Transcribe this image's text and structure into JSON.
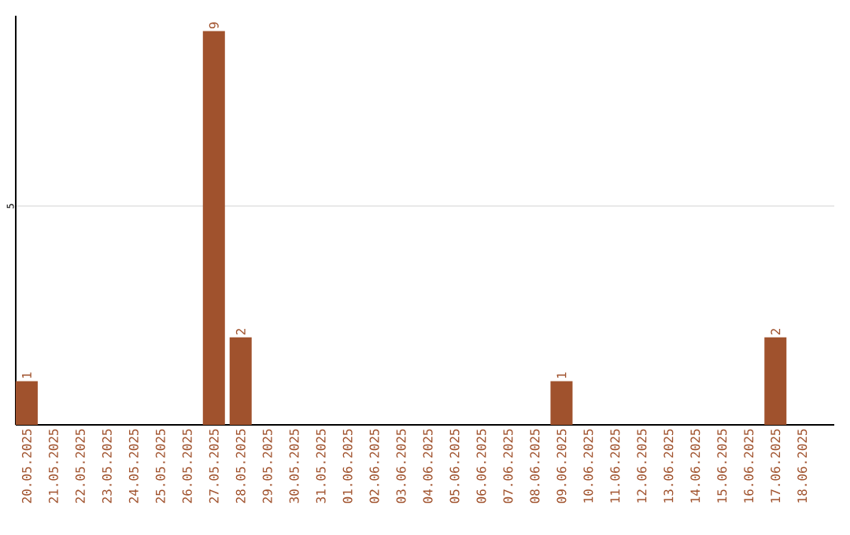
{
  "chart_data": {
    "type": "bar",
    "categories": [
      "20.05.2025",
      "21.05.2025",
      "22.05.2025",
      "23.05.2025",
      "24.05.2025",
      "25.05.2025",
      "26.05.2025",
      "27.05.2025",
      "28.05.2025",
      "29.05.2025",
      "30.05.2025",
      "31.05.2025",
      "01.06.2025",
      "02.06.2025",
      "03.06.2025",
      "04.06.2025",
      "05.06.2025",
      "06.06.2025",
      "07.06.2025",
      "08.06.2025",
      "09.06.2025",
      "10.06.2025",
      "11.06.2025",
      "12.06.2025",
      "13.06.2025",
      "14.06.2025",
      "15.06.2025",
      "16.06.2025",
      "17.06.2025",
      "18.06.2025"
    ],
    "values": [
      1,
      0,
      0,
      0,
      0,
      0,
      0,
      9,
      2,
      0,
      0,
      0,
      0,
      0,
      0,
      0,
      0,
      0,
      0,
      0,
      1,
      0,
      0,
      0,
      0,
      0,
      0,
      0,
      2,
      0
    ],
    "value_labels": [
      "1",
      null,
      null,
      null,
      null,
      null,
      null,
      "9",
      "2",
      null,
      null,
      null,
      null,
      null,
      null,
      null,
      null,
      null,
      null,
      null,
      "1",
      null,
      null,
      null,
      null,
      null,
      null,
      null,
      "2",
      null
    ],
    "color": "#a0522d",
    "ylim": [
      0,
      9.35
    ],
    "yticks": [
      5
    ],
    "grid": "y"
  }
}
